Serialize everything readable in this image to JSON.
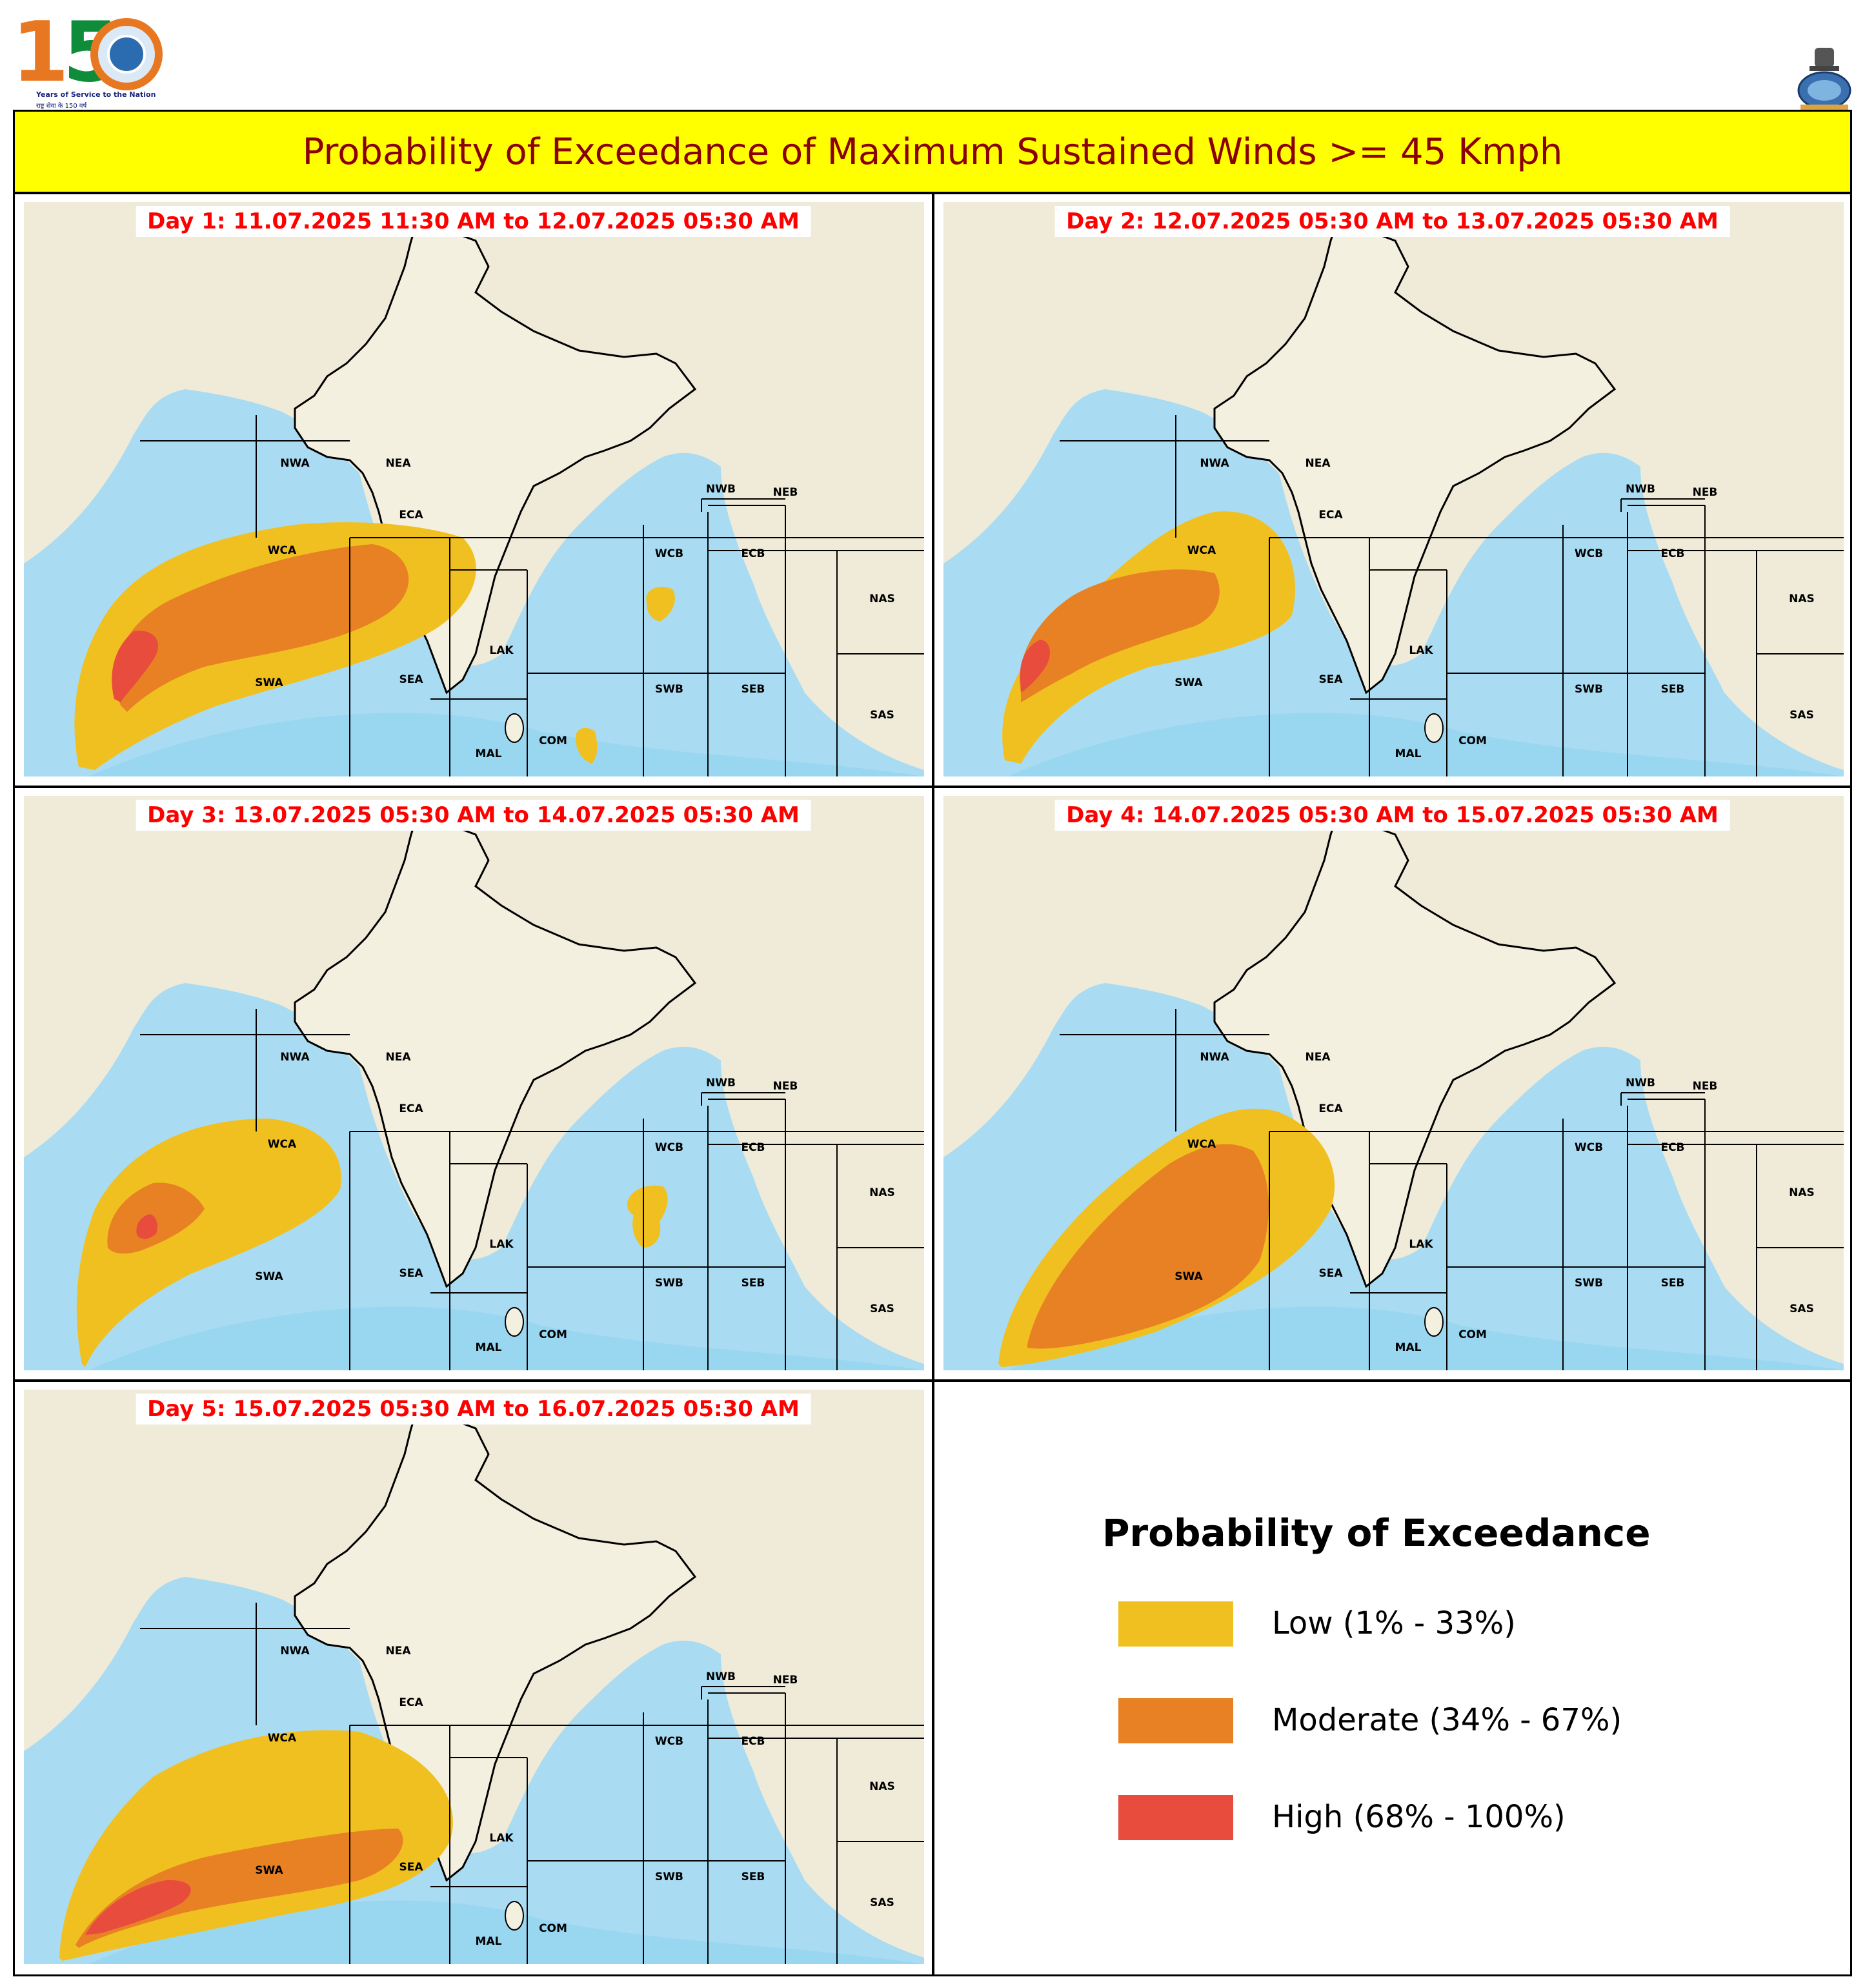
{
  "header": {
    "logo_150": {
      "digit_one": "1",
      "digit_five": "5",
      "tagline": "Years of Service to the Nation",
      "tagline_hindi": "राष्ट्र सेवा के 150 वर्ष"
    },
    "title": "Probability of Exceedance of Maximum Sustained Winds >= 45 Kmph"
  },
  "region_labels": [
    "NWA",
    "NEA",
    "ECA",
    "WCA",
    "SWA",
    "SEA",
    "LAK",
    "MAL",
    "COM",
    "WCB",
    "ECB",
    "NWB",
    "NEB",
    "NAS",
    "SWB",
    "SEB",
    "SAS"
  ],
  "panels": [
    {
      "label": "Day 1: 11.07.2025 11:30 AM to 12.07.2025 05:30 AM"
    },
    {
      "label": "Day 2: 12.07.2025 05:30 AM to 13.07.2025 05:30 AM"
    },
    {
      "label": "Day 3: 13.07.2025 05:30 AM to 14.07.2025 05:30 AM"
    },
    {
      "label": "Day 4: 14.07.2025 05:30 AM to 15.07.2025 05:30 AM"
    },
    {
      "label": "Day 5: 15.07.2025 05:30 AM to 16.07.2025 05:30 AM"
    }
  ],
  "legend": {
    "title": "Probability of Exceedance",
    "items": [
      {
        "label": "Low (1% - 33%)",
        "color": "#f0c020"
      },
      {
        "label": "Moderate (34% - 67%)",
        "color": "#e88124"
      },
      {
        "label": "High (68% - 100%)",
        "color": "#e84c3d"
      }
    ]
  },
  "colors": {
    "land": "#efebd8",
    "sea": "#a9dcf3",
    "sea_deep": "#8fd3f0",
    "title_bg": "#ffff00",
    "title_text": "#8b0000",
    "day_label": "#ff0000"
  }
}
